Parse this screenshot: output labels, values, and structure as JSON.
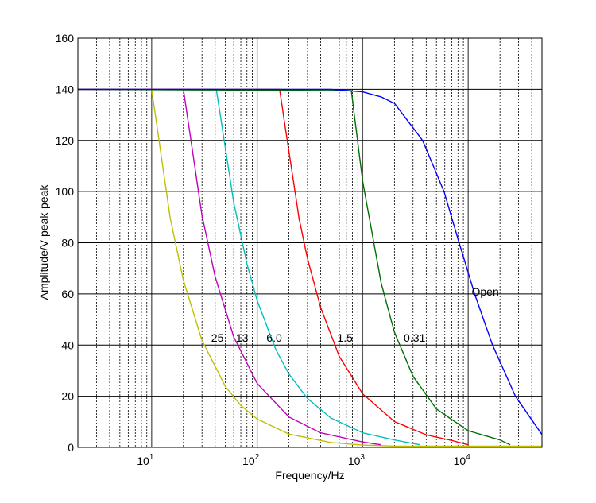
{
  "chart_data": {
    "type": "line",
    "title": "",
    "xlabel": "Frequency/Hz",
    "ylabel": "Amplitude/V peak-peak",
    "xscale": "log",
    "xlim": [
      2,
      50000
    ],
    "ylim": [
      0,
      160
    ],
    "yticks": [
      0,
      20,
      40,
      60,
      80,
      100,
      120,
      140,
      160
    ],
    "xticks": [
      10,
      100,
      1000,
      10000
    ],
    "xtick_labels": [
      {
        "base": "10",
        "exp": "1"
      },
      {
        "base": "10",
        "exp": "2"
      },
      {
        "base": "10",
        "exp": "3"
      },
      {
        "base": "10",
        "exp": "4"
      }
    ],
    "grid": true,
    "legend": "none",
    "series": [
      {
        "color": "#bfbf00",
        "x": [
          2,
          10,
          15,
          20,
          30,
          50,
          70,
          100,
          200,
          500,
          1000,
          2000,
          50000
        ],
        "y": [
          140,
          140,
          89.6,
          65.3,
          41.8,
          23.8,
          16.4,
          11.1,
          5.2,
          1.9,
          0.9,
          0.5,
          0.5
        ]
      },
      {
        "color": "#bf00bf",
        "x": [
          2,
          20,
          30,
          40,
          60,
          100,
          200,
          400,
          1000,
          1500
        ],
        "y": [
          140,
          140,
          90.7,
          66.7,
          43.2,
          25,
          11.9,
          5.7,
          2.1,
          1.0
        ]
      },
      {
        "color": "#00bfbf",
        "x": [
          2,
          41,
          60,
          80,
          100,
          150,
          200,
          300,
          500,
          1000,
          2000,
          3500
        ],
        "y": [
          140,
          140,
          95.7,
          71.8,
          57.4,
          38.3,
          28.7,
          19.1,
          11.5,
          5.7,
          2.9,
          1.0
        ]
      },
      {
        "color": "#ff0000",
        "x": [
          2,
          163,
          250,
          300,
          400,
          600,
          1000,
          2000,
          4000,
          7000,
          10000
        ],
        "y": [
          140,
          140,
          89.3,
          73.8,
          54.6,
          35.6,
          20.9,
          10.1,
          4.9,
          2.7,
          1.0
        ]
      },
      {
        "color": "#006f00",
        "x": [
          2,
          780,
          1000,
          1500,
          2000,
          3000,
          5000,
          10000,
          20000,
          25000
        ],
        "y": [
          140,
          139.5,
          104,
          64,
          45,
          27.8,
          15,
          6.5,
          2.9,
          1.0
        ]
      },
      {
        "color": "#0000ff",
        "x": [
          2,
          500,
          1000,
          1500,
          2000,
          3700,
          5900,
          8200,
          11500,
          17000,
          28000,
          50000
        ],
        "y": [
          140,
          140,
          139,
          137,
          134.5,
          120,
          100,
          80,
          60,
          40,
          20,
          5
        ]
      }
    ],
    "annotations": [
      {
        "text": "25",
        "x": 42,
        "y": 42
      },
      {
        "text": "13",
        "x": 72,
        "y": 42
      },
      {
        "text": "6.0",
        "x": 145,
        "y": 42
      },
      {
        "text": "1.5",
        "x": 680,
        "y": 42
      },
      {
        "text": "0.31",
        "x": 3100,
        "y": 42
      },
      {
        "text": "Open",
        "x": 14500,
        "y": 60
      }
    ]
  }
}
